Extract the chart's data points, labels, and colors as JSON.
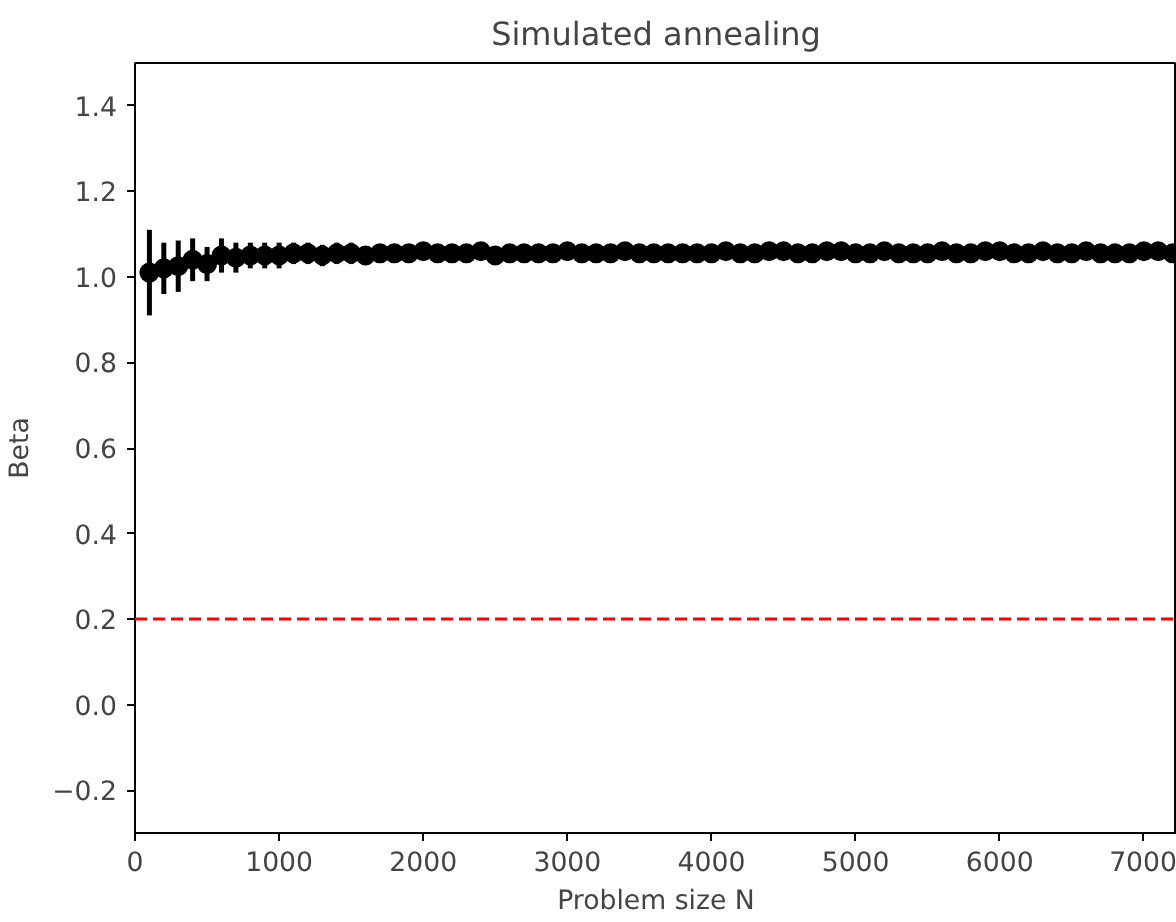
{
  "chart_data": {
    "type": "scatter",
    "title": "Simulated annealing",
    "xlabel": "Problem size N",
    "ylabel": "Beta",
    "x": [
      100,
      200,
      300,
      400,
      500,
      600,
      700,
      800,
      900,
      1000,
      1100,
      1200,
      1300,
      1400,
      1500,
      1600,
      1700,
      1800,
      1900,
      2000,
      2100,
      2200,
      2300,
      2400,
      2500,
      2600,
      2700,
      2800,
      2900,
      3000,
      3100,
      3200,
      3300,
      3400,
      3500,
      3600,
      3700,
      3800,
      3900,
      4000,
      4100,
      4200,
      4300,
      4400,
      4500,
      4600,
      4700,
      4800,
      4900,
      5000,
      5100,
      5200,
      5300,
      5400,
      5500,
      5600,
      5700,
      5800,
      5900,
      6000,
      6100,
      6200,
      6300,
      6400,
      6500,
      6600,
      6700,
      6800,
      6900,
      7000,
      7100,
      7200
    ],
    "values": [
      1.01,
      1.02,
      1.025,
      1.04,
      1.03,
      1.05,
      1.045,
      1.05,
      1.05,
      1.05,
      1.055,
      1.055,
      1.05,
      1.055,
      1.055,
      1.05,
      1.055,
      1.055,
      1.055,
      1.06,
      1.055,
      1.055,
      1.055,
      1.06,
      1.05,
      1.055,
      1.055,
      1.055,
      1.055,
      1.06,
      1.055,
      1.055,
      1.055,
      1.06,
      1.055,
      1.055,
      1.055,
      1.055,
      1.055,
      1.055,
      1.06,
      1.055,
      1.055,
      1.06,
      1.06,
      1.055,
      1.055,
      1.06,
      1.06,
      1.055,
      1.055,
      1.06,
      1.055,
      1.055,
      1.055,
      1.06,
      1.055,
      1.055,
      1.06,
      1.06,
      1.055,
      1.055,
      1.06,
      1.055,
      1.055,
      1.06,
      1.055,
      1.055,
      1.055,
      1.06,
      1.06,
      1.055
    ],
    "errors": [
      0.1,
      0.06,
      0.06,
      0.05,
      0.04,
      0.04,
      0.035,
      0.03,
      0.03,
      0.03,
      0.025,
      0.025,
      0.025,
      0.025,
      0.025,
      0.02,
      0.02,
      0.02,
      0.02,
      0.02,
      null,
      null,
      null,
      null,
      null,
      null,
      null,
      null,
      null,
      null,
      null,
      null,
      null,
      null,
      null,
      null,
      null,
      null,
      null,
      null,
      null,
      null,
      null,
      null,
      null,
      null,
      null,
      null,
      null,
      null,
      null,
      null,
      null,
      null,
      null,
      null,
      null,
      null,
      null,
      null,
      null,
      null,
      null,
      null,
      null,
      null,
      null,
      null,
      null,
      null,
      null,
      null
    ],
    "color": "#000000",
    "marker": "circle",
    "xlim": [
      0,
      7230
    ],
    "ylim": [
      -0.3,
      1.5
    ],
    "xticks": [
      0,
      1000,
      2000,
      3000,
      4000,
      5000,
      6000,
      7000
    ],
    "yticks": [
      {
        "value": -0.2,
        "label": "−0.2"
      },
      {
        "value": 0,
        "label": "0.0"
      },
      {
        "value": 0.2,
        "label": "0.2"
      },
      {
        "value": 0.4,
        "label": "0.4"
      },
      {
        "value": 0.6,
        "label": "0.6"
      },
      {
        "value": 0.8,
        "label": "0.8"
      },
      {
        "value": 1,
        "label": "1.0"
      },
      {
        "value": 1.2,
        "label": "1.2"
      },
      {
        "value": 1.4,
        "label": "1.4"
      }
    ],
    "ref_lines": [
      {
        "axis": "y",
        "value": 0.2,
        "color": "#ff0000",
        "line_style": "dashed"
      }
    ]
  }
}
